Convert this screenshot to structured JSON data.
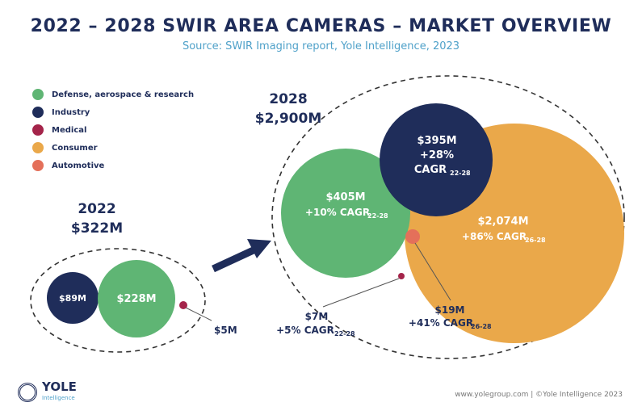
{
  "header": {
    "title": "2022 – 2028 SWIR AREA CAMERAS – MARKET OVERVIEW",
    "subtitle": "Source: SWIR Imaging report, Yole Intelligence, 2023"
  },
  "legend": [
    {
      "label": "Defense, aerospace & research",
      "color": "#5fb574"
    },
    {
      "label": "Industry",
      "color": "#1f2d5a"
    },
    {
      "label": "Medical",
      "color": "#a4244a"
    },
    {
      "label": "Consumer",
      "color": "#eaa84a"
    },
    {
      "label": "Automotive",
      "color": "#e4705a"
    }
  ],
  "year_2022": {
    "year": "2022",
    "total": "$322M",
    "industry": "$89M",
    "defense": "$228M",
    "medical": "$5M"
  },
  "year_2028": {
    "year": "2028",
    "total": "$2,900M",
    "industry_value": "$395M",
    "industry_growth": "+28%",
    "industry_cagr": "CAGR",
    "industry_cagr_sub": "22-28",
    "defense_value": "$405M",
    "defense_cagr": "+10% CAGR",
    "defense_cagr_sub": "22-28",
    "consumer_value": "$2,074M",
    "consumer_cagr": "+86% CAGR",
    "consumer_cagr_sub": "26-28",
    "automotive_value": "$19M",
    "automotive_cagr": "+41% CAGR",
    "automotive_cagr_sub": "26-28",
    "medical_value": "$7M",
    "medical_cagr": "+5% CAGR",
    "medical_cagr_sub": "22-28"
  },
  "footer": {
    "logo": "YOLE",
    "logo_sub": "Intelligence",
    "credit": "www.yolegroup.com | ©Yole Intelligence 2023"
  }
}
